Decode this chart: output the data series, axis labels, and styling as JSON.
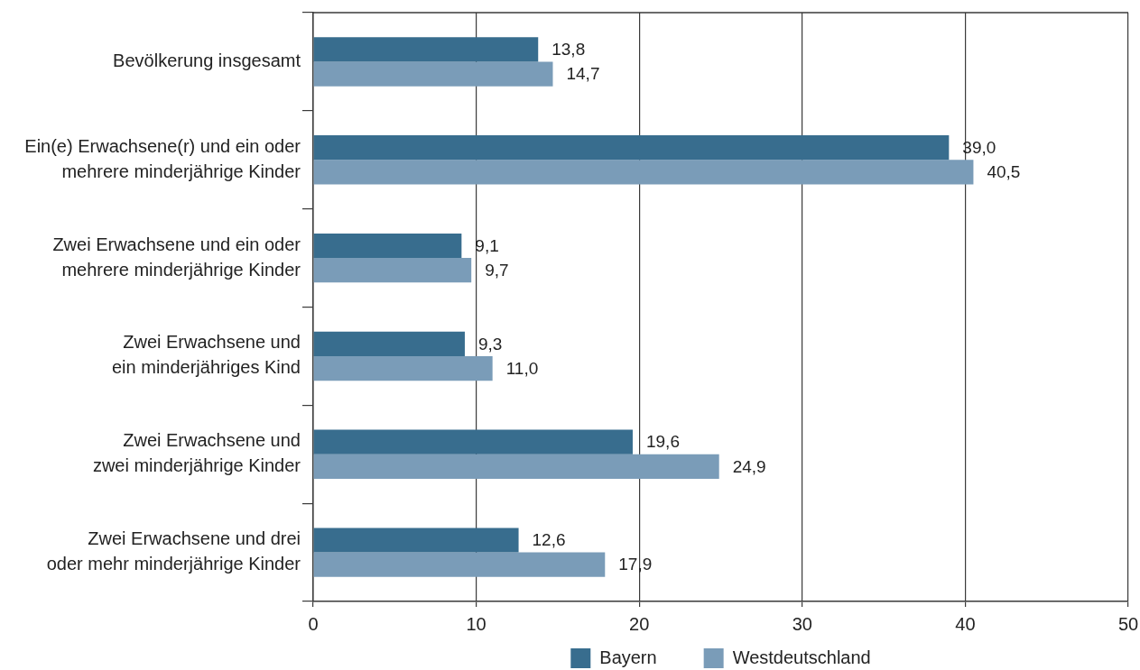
{
  "chart_data": {
    "type": "bar",
    "orientation": "horizontal",
    "categories": [
      "Bevölkerung insgesamt",
      "Ein(e) Erwachsene(r) und ein oder mehrere minderjährige Kinder",
      "Zwei Erwachsene und ein oder mehrere minderjährige Kinder",
      "Zwei Erwachsene und ein minderjähriges Kind",
      "Zwei Erwachsene und zwei minderjährige Kinder",
      "Zwei Erwachsene und drei oder mehr minderjährige Kinder"
    ],
    "series": [
      {
        "name": "Bayern",
        "color": "#386d8e",
        "values": [
          13.8,
          39.0,
          9.1,
          9.3,
          19.6,
          12.6
        ],
        "value_labels": [
          "13,8",
          "39,0",
          "9,1",
          "9,3",
          "19,6",
          "12,6"
        ]
      },
      {
        "name": "Westdeutschland",
        "color": "#7a9cb8",
        "values": [
          14.7,
          40.5,
          9.7,
          11.0,
          24.9,
          17.9
        ],
        "value_labels": [
          "14,7",
          "40,5",
          "9,7",
          "11,0",
          "24,9",
          "17,9"
        ]
      }
    ],
    "xlim": [
      0,
      50
    ],
    "xticks": [
      0,
      10,
      20,
      30,
      40,
      50
    ],
    "grid": "x",
    "legend": "bottom"
  }
}
